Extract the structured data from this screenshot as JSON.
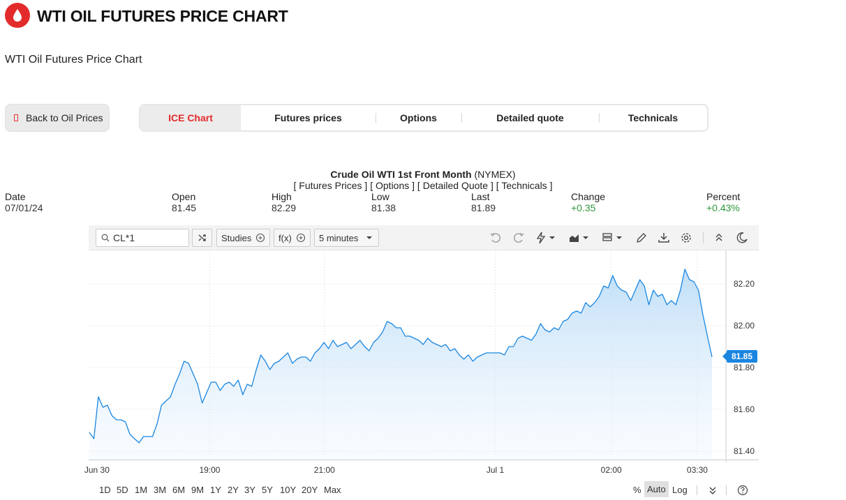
{
  "header": {
    "title": "WTI OIL FUTURES PRICE CHART",
    "subtitle": "WTI Oil Futures Price Chart",
    "logo_color": "#e32b2b"
  },
  "back_button": {
    "label": "Back to Oil Prices"
  },
  "tabs": [
    {
      "label": "ICE Chart",
      "active": true
    },
    {
      "label": "Futures prices",
      "active": false
    },
    {
      "label": "Options",
      "active": false
    },
    {
      "label": "Detailed quote",
      "active": false
    },
    {
      "label": "Technicals",
      "active": false
    }
  ],
  "quote": {
    "title_bold": "Crude Oil WTI 1st Front Month",
    "title_exchange": "(NYMEX)",
    "links": [
      "Futures Prices",
      "Options",
      "Detailed Quote",
      "Technicals"
    ],
    "columns": [
      {
        "label": "Date",
        "value": "07/01/24"
      },
      {
        "label": "Open",
        "value": "81.45"
      },
      {
        "label": "High",
        "value": "82.29"
      },
      {
        "label": "Low",
        "value": "81.38"
      },
      {
        "label": "Last",
        "value": "81.89"
      },
      {
        "label": "Change",
        "value": "+0.35"
      },
      {
        "label": "Percent",
        "value": "+0.43%"
      }
    ],
    "positive_color": "#2e9a3c"
  },
  "chart_toolbar": {
    "symbol": "CL*1",
    "studies_label": "Studies",
    "fx_label": "f(x)",
    "interval_label": "5 minutes",
    "icons": [
      "undo-icon",
      "redo-icon",
      "lightning-icon",
      "chart-type-icon",
      "layout-icon",
      "pencil-icon",
      "download-icon",
      "gear-icon",
      "collapse-icon",
      "dark-mode-icon"
    ]
  },
  "chart_data": {
    "type": "area",
    "title": "",
    "xlabel": "",
    "ylabel": "",
    "series_color": "#1a86e0",
    "y_ticks": [
      "82.20",
      "82.00",
      "81.80",
      "81.60",
      "81.40"
    ],
    "ylim": [
      81.36,
      82.36
    ],
    "x_ticks": [
      "Jun 30",
      "19:00",
      "21:00",
      "Jul 1",
      "02:00",
      "03:30"
    ],
    "last_price_label": "81.85",
    "values": [
      81.49,
      81.46,
      81.66,
      81.61,
      81.62,
      81.57,
      81.55,
      81.55,
      81.54,
      81.48,
      81.46,
      81.44,
      81.47,
      81.47,
      81.47,
      81.53,
      81.62,
      81.64,
      81.66,
      81.72,
      81.77,
      81.83,
      81.82,
      81.77,
      81.72,
      81.63,
      81.68,
      81.73,
      81.73,
      81.69,
      81.72,
      81.73,
      81.71,
      81.74,
      81.67,
      81.72,
      81.71,
      81.79,
      81.86,
      81.83,
      81.79,
      81.82,
      81.83,
      81.85,
      81.87,
      81.82,
      81.84,
      81.85,
      81.85,
      81.83,
      81.87,
      81.89,
      81.92,
      81.89,
      81.93,
      81.9,
      81.91,
      81.92,
      81.89,
      81.91,
      81.93,
      81.9,
      81.88,
      81.92,
      81.94,
      81.97,
      82.02,
      82.01,
      81.99,
      81.99,
      81.95,
      81.95,
      81.94,
      81.93,
      81.91,
      81.94,
      81.92,
      81.91,
      81.9,
      81.91,
      81.88,
      81.89,
      81.86,
      81.84,
      81.86,
      81.83,
      81.85,
      81.86,
      81.87,
      81.87,
      81.87,
      81.87,
      81.86,
      81.9,
      81.9,
      81.94,
      81.95,
      81.94,
      81.93,
      81.96,
      82.01,
      81.98,
      81.97,
      81.99,
      81.98,
      82.02,
      82.03,
      82.06,
      82.07,
      82.06,
      82.11,
      82.09,
      82.11,
      82.14,
      82.19,
      82.18,
      82.24,
      82.19,
      82.17,
      82.16,
      82.12,
      82.17,
      82.22,
      82.19,
      82.1,
      82.17,
      82.14,
      82.15,
      82.1,
      82.12,
      82.1,
      82.17,
      82.27,
      82.22,
      82.21,
      82.17,
      82.05,
      81.95,
      81.85
    ]
  },
  "range_buttons": [
    "1D",
    "5D",
    "1M",
    "3M",
    "6M",
    "9M",
    "1Y",
    "2Y",
    "3Y",
    "5Y",
    "10Y",
    "20Y",
    "Max"
  ],
  "scale_buttons": {
    "percent": "%",
    "auto": "Auto",
    "log": "Log"
  }
}
